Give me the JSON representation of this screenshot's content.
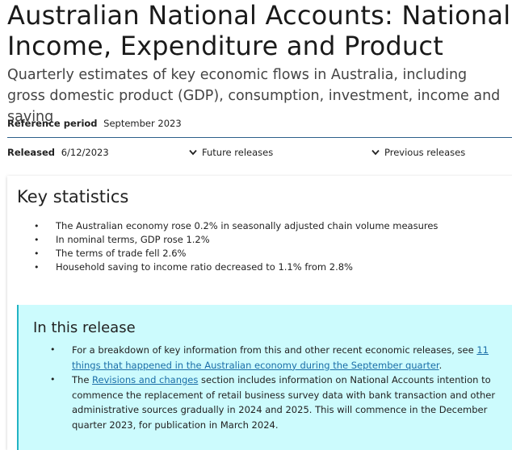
{
  "header": {
    "title": "Australian National Accounts: National Income, Expenditure and Product",
    "subtitle": "Quarterly estimates of key economic flows in Australia, including gross domestic product (GDP), consumption, investment, income and saving",
    "reference_label": "Reference period",
    "reference_value": "September 2023",
    "released_label": "Released",
    "released_value": "6/12/2023",
    "future_releases": "Future releases",
    "previous_releases": "Previous releases"
  },
  "key_statistics": {
    "title": "Key statistics",
    "items": [
      "The Australian economy rose 0.2% in seasonally adjusted chain volume measures",
      "In nominal terms, GDP rose 1.2%",
      "The terms of trade fell 2.6%",
      "Household saving to income ratio decreased to 1.1% from 2.8%"
    ]
  },
  "in_this_release": {
    "title": "In this release",
    "item1_prefix": "For a breakdown of key information from this and other recent economic releases, see ",
    "item1_link": "11 things that happened in the Australian economy during the September quarter",
    "item1_suffix": ".",
    "item2_prefix": "The ",
    "item2_link": "Revisions and changes",
    "item2_suffix": " section includes information on National Accounts intention to commence the replacement of retail business survey data with bank transaction and other administrative sources gradually in 2024 and 2025. This will commence in the December quarter 2023, for publication in March 2024."
  },
  "colors": {
    "link": "#1a6ea8",
    "release_bg": "#ccfbfd",
    "release_border": "#22b3c4",
    "rule": "#2b5f8a"
  }
}
